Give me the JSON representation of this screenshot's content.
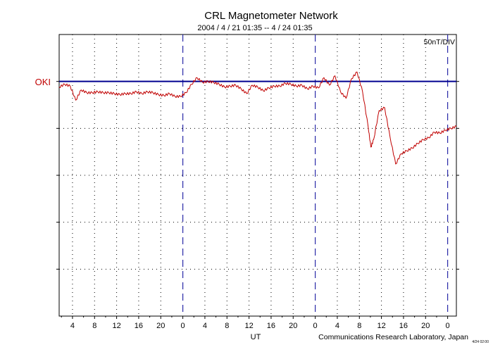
{
  "chart_data": {
    "type": "line",
    "title": "CRL Magnetometer Network",
    "subtitle": "2004 / 4 / 21   01:35 --  4 / 24   01:35",
    "scale_label": "50nT/DIV",
    "xlabel": "UT",
    "credit": "Communications Research Laboratory, Japan",
    "corner_note": "4/24 02:00",
    "station": "OKI",
    "hour_ticks": [
      "4",
      "8",
      "12",
      "16",
      "20",
      "0",
      "4",
      "8",
      "12",
      "16",
      "20",
      "0",
      "4",
      "8",
      "12",
      "16",
      "20",
      "0"
    ],
    "x_range_hours": [
      0,
      72
    ],
    "first_tick_offset_hours": 2.4167,
    "day_boundaries_hours": [
      22.4167,
      46.4167,
      70.4167
    ],
    "y_divisions": 6,
    "y_units_per_div": 50,
    "y_unit": "nT",
    "baseline_division": 1,
    "grid": true,
    "colors": {
      "trace": "#c00000",
      "baseline": "#000090",
      "day_line": "#2a2aa8",
      "label": "#c00000",
      "frame": "#000000"
    },
    "series": [
      {
        "name": "OKI",
        "x": [
          0,
          1,
          2,
          3,
          4,
          5,
          6,
          7,
          8,
          9,
          10,
          11,
          12,
          13,
          14,
          15,
          16,
          17,
          18,
          19,
          20,
          21,
          22,
          23,
          24,
          25,
          26,
          27,
          28,
          29,
          30,
          31,
          32,
          33,
          34,
          35,
          36,
          37,
          38,
          39,
          40,
          41,
          42,
          43,
          44,
          45,
          46,
          47,
          48,
          49,
          50,
          51,
          52,
          53,
          54,
          55,
          56,
          56.5,
          57,
          58,
          59,
          60,
          61,
          62,
          63,
          64,
          65,
          66,
          67,
          68,
          69,
          70,
          71,
          72
        ],
        "y": [
          -6,
          -3,
          -5,
          -20,
          -9,
          -12,
          -12,
          -11,
          -12,
          -12,
          -13,
          -14,
          -13,
          -13,
          -11,
          -13,
          -11,
          -12,
          -14,
          -15,
          -13,
          -16,
          -16,
          -12,
          -3,
          4,
          -1,
          0,
          -1,
          -3,
          -6,
          -5,
          -4,
          -8,
          -13,
          -4,
          -6,
          -10,
          -7,
          -5,
          -5,
          -2,
          -3,
          -5,
          -4,
          -8,
          -5,
          -7,
          4,
          -4,
          6,
          -11,
          -18,
          3,
          10,
          -11,
          -48,
          -70,
          -62,
          -31,
          -28,
          -60,
          -88,
          -77,
          -74,
          -71,
          -66,
          -62,
          -60,
          -54,
          -55,
          -52,
          -50,
          -48
        ]
      }
    ]
  }
}
